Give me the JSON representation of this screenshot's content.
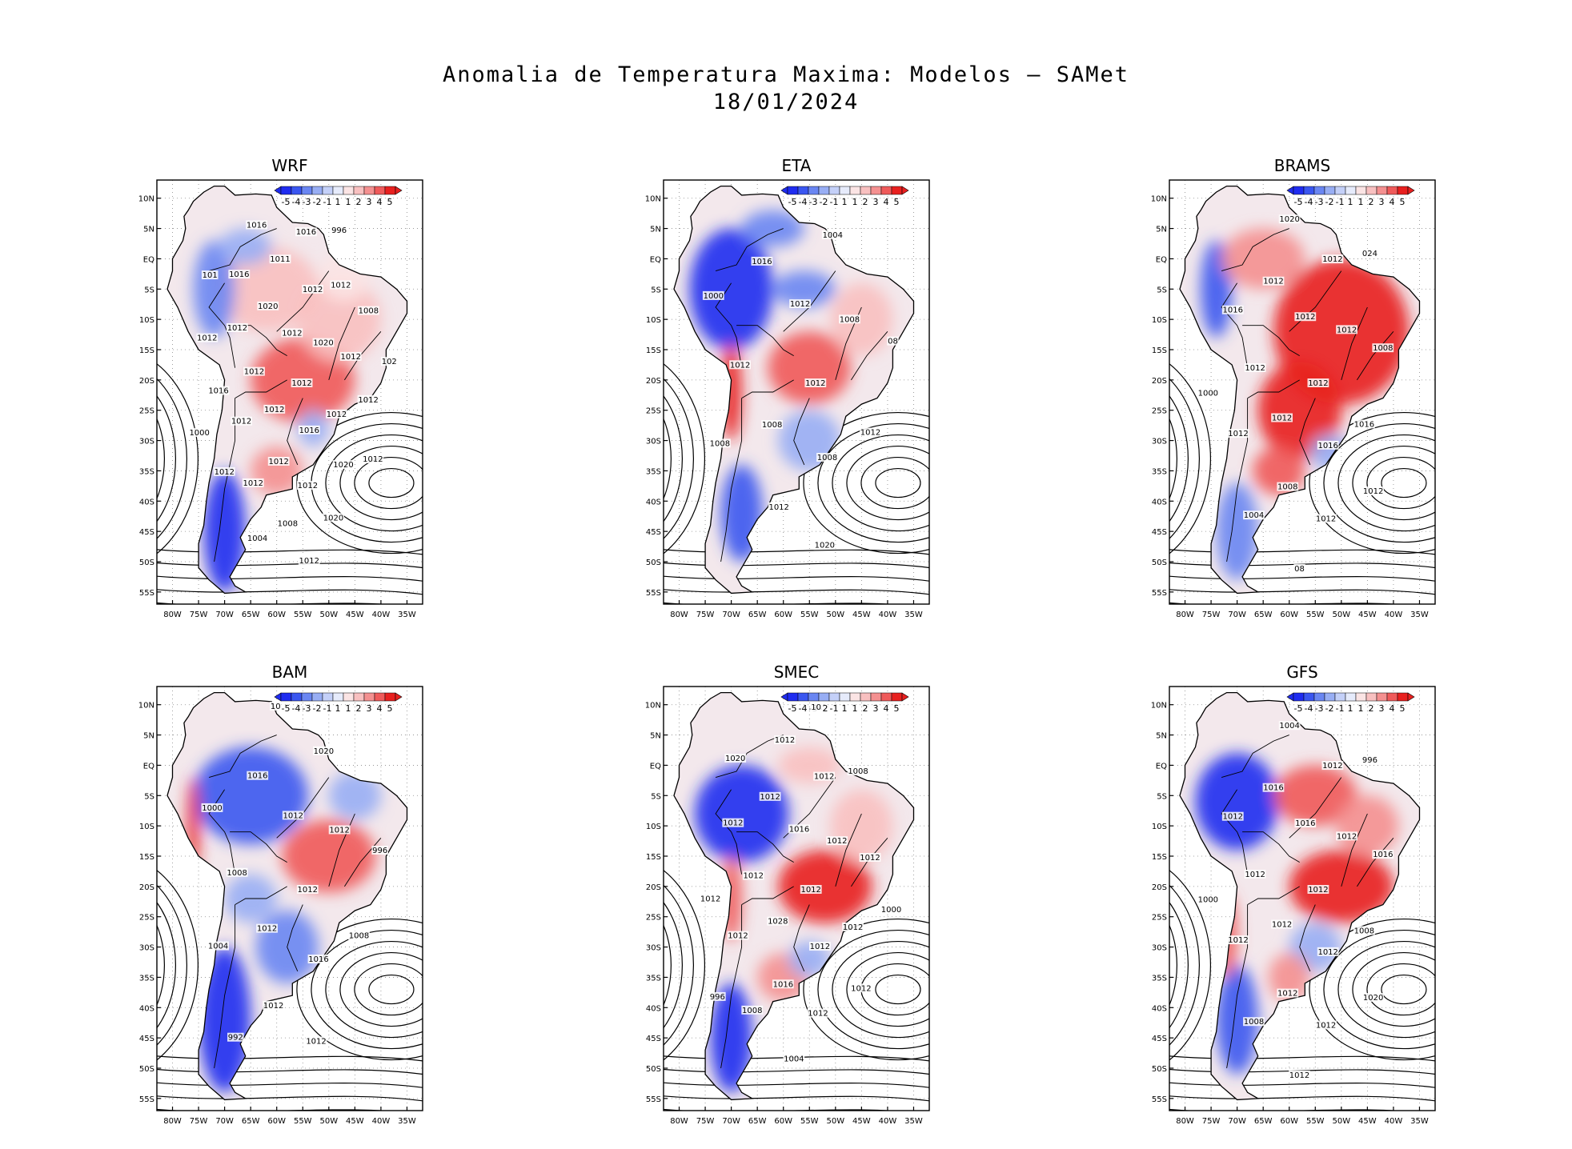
{
  "figure": {
    "title_line1": "Anomalia de Temperatura Maxima: Modelos – SAMet",
    "title_line2": "18/01/2024"
  },
  "axes": {
    "lat_labels": [
      "10N",
      "5N",
      "EQ",
      "5S",
      "10S",
      "15S",
      "20S",
      "25S",
      "30S",
      "35S",
      "40S",
      "45S",
      "50S",
      "55S"
    ],
    "lon_labels": [
      "80W",
      "75W",
      "70W",
      "65W",
      "60W",
      "55W",
      "50W",
      "45W",
      "40W",
      "35W"
    ]
  },
  "colorbar": {
    "labels": [
      "-5",
      "-4",
      "-3",
      "-2",
      "-1",
      "1",
      "1",
      "2",
      "3",
      "4",
      "5"
    ],
    "colors": [
      "#1f2cf0",
      "#3a56f0",
      "#6a86f2",
      "#98aef4",
      "#c4d0f8",
      "#e6ebfb",
      "#fbe4e4",
      "#f8c0c0",
      "#f49090",
      "#ef5a5a",
      "#e8201f"
    ]
  },
  "colors": {
    "contour": "#000000",
    "grid": "#888888",
    "land_base": "#ffffff"
  },
  "panels": [
    {
      "name": "WRF",
      "title": "WRF",
      "pressure_labels": [
        "1012",
        "1012",
        "1012",
        "1016",
        "1012",
        "1020",
        "1012",
        "1020",
        "1012",
        "1012",
        "1012",
        "1012",
        "1012",
        "1012",
        "1012",
        "1011",
        "1020",
        "1016",
        "1012",
        "1008",
        "1016",
        "1012",
        "1012",
        "1016",
        "1020",
        "1012",
        "1008",
        "1004",
        "1016",
        "1012",
        "1000",
        "996",
        "1012",
        "101",
        "102"
      ],
      "anomaly_regions": [
        {
          "cls": "warm",
          "label": "central brazil"
        },
        {
          "cls": "cold",
          "label": "patagonia"
        }
      ]
    },
    {
      "name": "ETA",
      "title": "ETA",
      "pressure_labels": [
        "1012",
        "1008",
        "1012",
        "1008",
        "1012",
        "1008",
        "1012",
        "1016",
        "1012",
        "1008",
        "1004",
        "1020",
        "1000",
        "08"
      ]
    },
    {
      "name": "BRAMS",
      "title": "BRAMS",
      "pressure_labels": [
        "1012",
        "1012",
        "1012",
        "1016",
        "1012",
        "1012",
        "1008",
        "1012",
        "1016",
        "1012",
        "1012",
        "1012",
        "1016",
        "1008",
        "1004",
        "1020",
        "1012",
        "1000",
        "024",
        "08"
      ]
    },
    {
      "name": "BAM",
      "title": "BAM",
      "pressure_labels": [
        "1012",
        "1012",
        "1012",
        "1016",
        "1008",
        "1012",
        "1012",
        "1016",
        "1008",
        "1004",
        "1020",
        "1012",
        "1000",
        "996",
        "992",
        "10"
      ]
    },
    {
      "name": "SMEC",
      "title": "SMEC",
      "pressure_labels": [
        "1012",
        "1028",
        "1016",
        "1012",
        "1012",
        "1012",
        "1016",
        "1012",
        "1012",
        "1012",
        "1012",
        "1012",
        "1012",
        "1012",
        "1008",
        "1012",
        "1012",
        "1012",
        "1008",
        "1004",
        "1020",
        "1000",
        "996",
        "10"
      ]
    },
    {
      "name": "GFS",
      "title": "GFS",
      "pressure_labels": [
        "1012",
        "1012",
        "1016",
        "1012",
        "1012",
        "1012",
        "1012",
        "1016",
        "1008",
        "1012",
        "1012",
        "1012",
        "1012",
        "1016",
        "1008",
        "1004",
        "1020",
        "1000",
        "996",
        "1012"
      ]
    }
  ]
}
